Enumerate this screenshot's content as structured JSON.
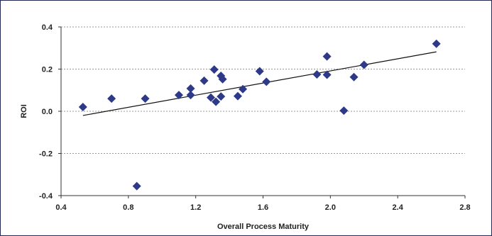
{
  "chart_data": {
    "type": "scatter",
    "title": "",
    "xlabel": "Overall Process Maturity",
    "ylabel": "ROI",
    "xlim": [
      0.4,
      2.8
    ],
    "ylim": [
      -0.4,
      0.4
    ],
    "x_ticks": [
      0.4,
      0.8,
      1.2,
      1.6,
      2.0,
      2.4,
      2.8
    ],
    "x_tick_labels": [
      "0.4",
      "0.8",
      "1.2",
      "1.6",
      "2.0",
      "2.4",
      "2.8"
    ],
    "y_ticks": [
      0.4,
      0.2,
      0.0,
      -0.2,
      -0.4
    ],
    "y_tick_labels": [
      "0.4",
      "0.2",
      "0.0",
      "-0.2",
      "-0.4"
    ],
    "grid": "horizontal-dashed",
    "marker_color": "#2e3a87",
    "line_color": "#111111",
    "points": [
      {
        "x": 0.53,
        "y": 0.02
      },
      {
        "x": 0.7,
        "y": 0.06
      },
      {
        "x": 0.85,
        "y": -0.355
      },
      {
        "x": 0.9,
        "y": 0.06
      },
      {
        "x": 1.1,
        "y": 0.077
      },
      {
        "x": 1.17,
        "y": 0.077
      },
      {
        "x": 1.17,
        "y": 0.108
      },
      {
        "x": 1.25,
        "y": 0.145
      },
      {
        "x": 1.29,
        "y": 0.065
      },
      {
        "x": 1.31,
        "y": 0.198
      },
      {
        "x": 1.32,
        "y": 0.045
      },
      {
        "x": 1.35,
        "y": 0.07
      },
      {
        "x": 1.35,
        "y": 0.168
      },
      {
        "x": 1.36,
        "y": 0.152
      },
      {
        "x": 1.45,
        "y": 0.072
      },
      {
        "x": 1.48,
        "y": 0.105
      },
      {
        "x": 1.58,
        "y": 0.19
      },
      {
        "x": 1.62,
        "y": 0.14
      },
      {
        "x": 1.92,
        "y": 0.175
      },
      {
        "x": 1.98,
        "y": 0.26
      },
      {
        "x": 1.98,
        "y": 0.173
      },
      {
        "x": 2.08,
        "y": 0.003
      },
      {
        "x": 2.14,
        "y": 0.162
      },
      {
        "x": 2.2,
        "y": 0.22
      },
      {
        "x": 2.63,
        "y": 0.32
      }
    ],
    "trendline": {
      "x": [
        0.53,
        2.63
      ],
      "y": [
        -0.02,
        0.282
      ]
    }
  }
}
